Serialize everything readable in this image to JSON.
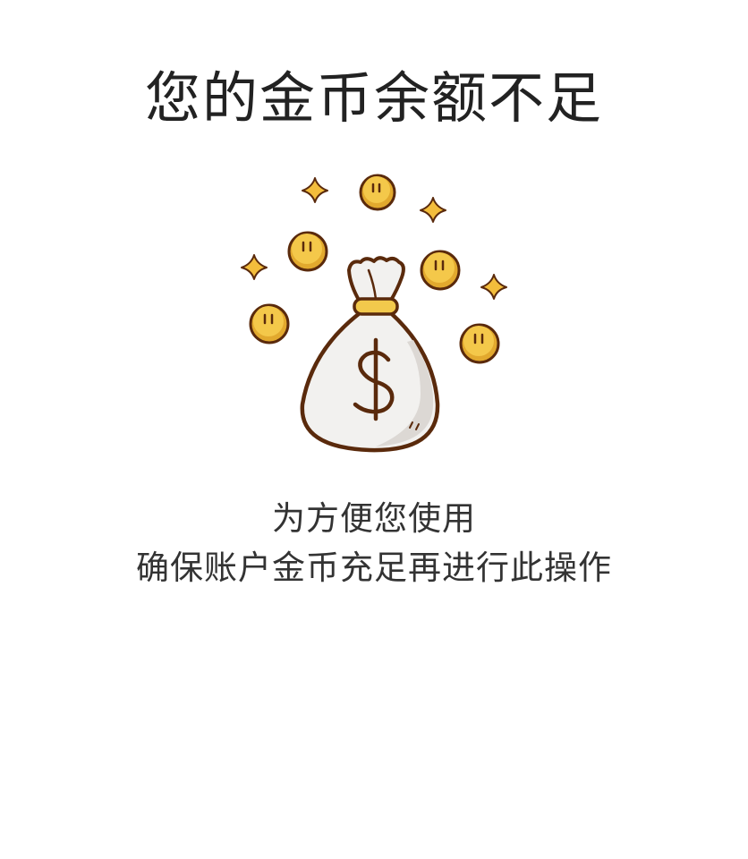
{
  "dialog": {
    "title": "您的金币余额不足",
    "illustration_icon": "money-bag-with-coins-icon",
    "message_line1": "为方便您使用",
    "message_line2": "确保账户金币充足再进行此操作"
  },
  "colors": {
    "title_text": "#222222",
    "message_text": "#333333",
    "coin_fill": "#f4c84a",
    "sparkle_fill": "#f3bd3c",
    "outline": "#5a2a0c",
    "bag_fill": "#f2f1ef",
    "bag_shadow": "#dcd8d4",
    "bag_tie": "#f2c94c"
  }
}
